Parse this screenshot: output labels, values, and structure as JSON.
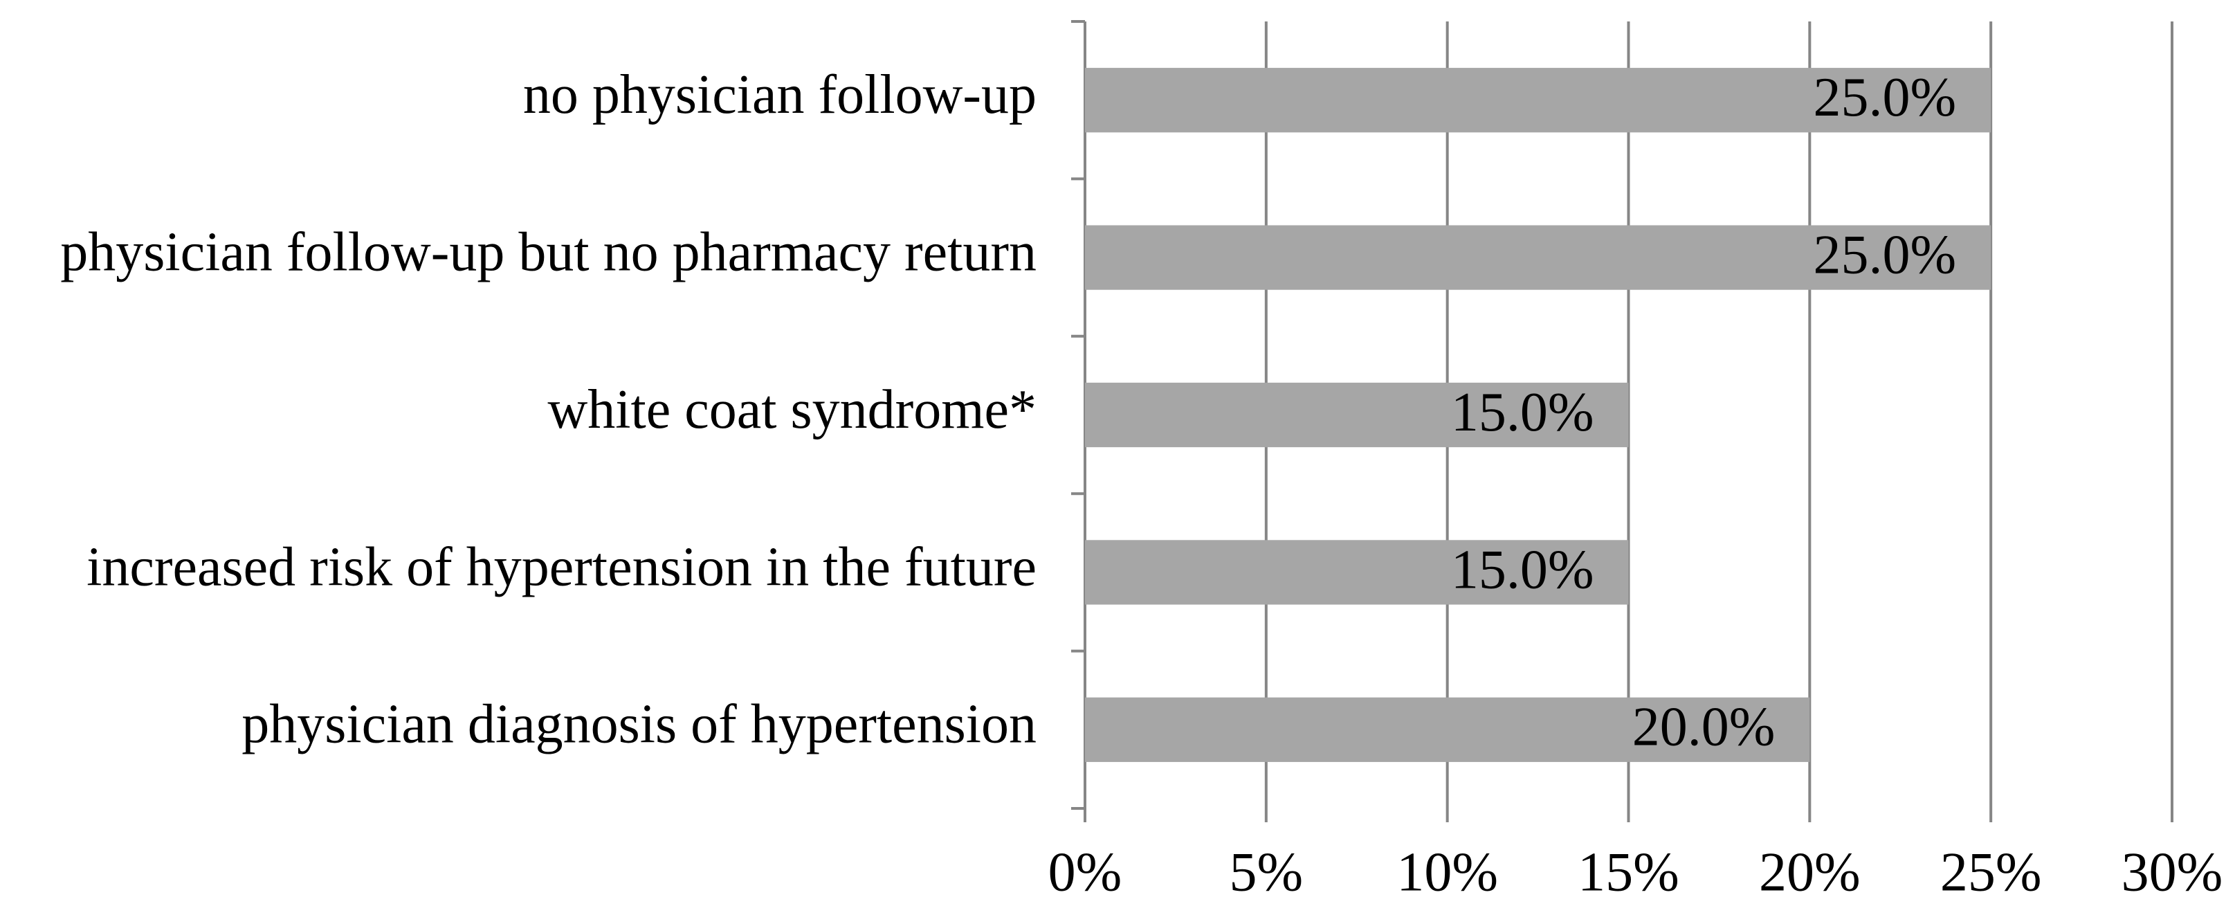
{
  "chart_data": {
    "type": "bar",
    "orientation": "horizontal",
    "categories": [
      "no physician follow-up",
      "physician follow-up but no pharmacy return",
      "white coat syndrome*",
      "increased risk of hypertension in the future",
      "physician diagnosis of hypertension"
    ],
    "values": [
      25,
      25,
      15,
      15,
      20
    ],
    "value_labels": [
      "25.0%",
      "25.0%",
      "15.0%",
      "15.0%",
      "20.0%"
    ],
    "color": "#a6a6a6",
    "xlim": [
      0,
      30
    ],
    "xticks": [
      {
        "value": 0,
        "label": "0%"
      },
      {
        "value": 5,
        "label": "5%"
      },
      {
        "value": 10,
        "label": "10%"
      },
      {
        "value": 15,
        "label": "15%"
      },
      {
        "value": 20,
        "label": "20%"
      },
      {
        "value": 25,
        "label": "25%"
      },
      {
        "value": 30,
        "label": "30%"
      }
    ],
    "grid": true
  }
}
